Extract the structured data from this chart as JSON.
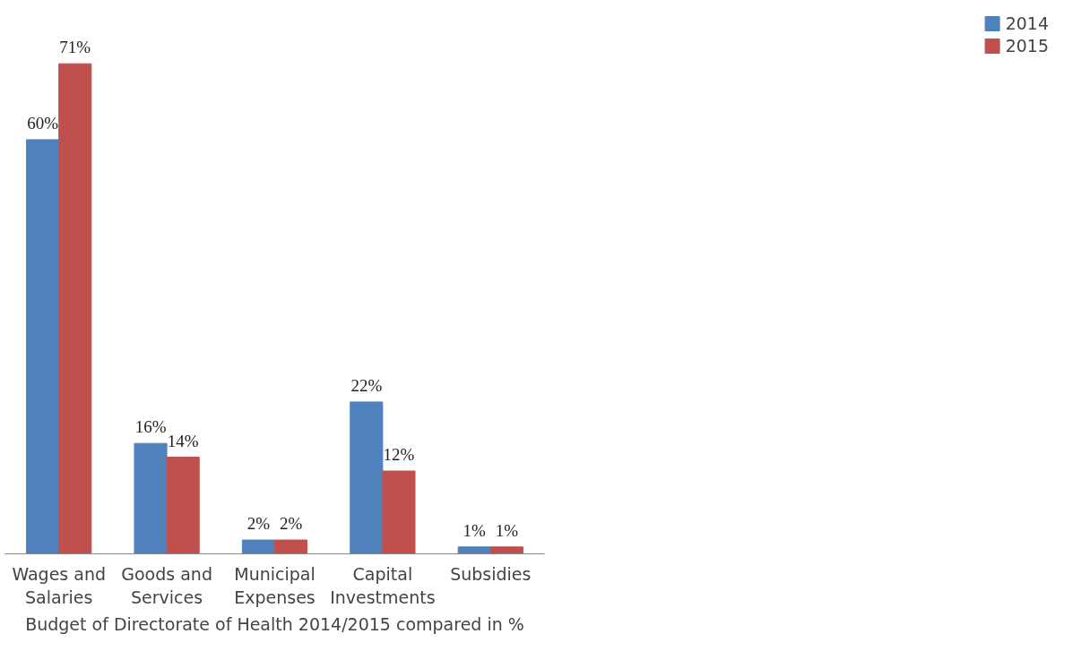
{
  "chart_data": {
    "type": "bar",
    "xlabel": "Budget of Directorate of Health 2014/2015 compared in %",
    "categories": [
      "Wages and Salaries",
      "Goods and Services",
      "Municipal Expenses",
      "Capital Investments",
      "Subsidies"
    ],
    "series": [
      {
        "name": "2014",
        "color": "#4f81bd",
        "values": [
          60,
          16,
          2,
          22,
          1
        ],
        "value_labels": [
          "60%",
          "16%",
          "2%",
          "22%",
          "1%"
        ]
      },
      {
        "name": "2015",
        "color": "#c0504d",
        "values": [
          71,
          14,
          2,
          12,
          1
        ],
        "value_labels": [
          "71%",
          "14%",
          "2%",
          "12%",
          "1%"
        ]
      }
    ],
    "legend": "right",
    "grid": false
  }
}
